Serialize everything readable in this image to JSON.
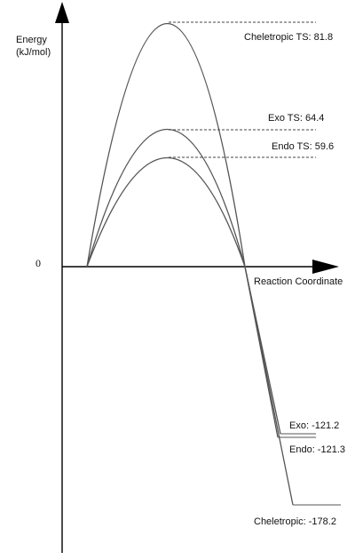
{
  "y_axis_label_line1": "Energy",
  "y_axis_label_line2": "(kJ/mol)",
  "zero_label": "0",
  "x_axis_label": "Reaction Coordinate",
  "pathways": [
    {
      "name": "Cheletropic",
      "ts_label": "Cheletropic TS: 81.8",
      "ts_energy": 81.8,
      "product_label": "Cheletropic: -178.2",
      "product_energy": -178.2
    },
    {
      "name": "Exo",
      "ts_label": "Exo TS: 64.4",
      "ts_energy": 64.4,
      "product_label": "Exo: -121.2",
      "product_energy": -121.2
    },
    {
      "name": "Endo",
      "ts_label": "Endo TS: 59.6",
      "ts_energy": 59.6,
      "product_label": "Endo: -121.3",
      "product_energy": -121.3
    }
  ]
}
